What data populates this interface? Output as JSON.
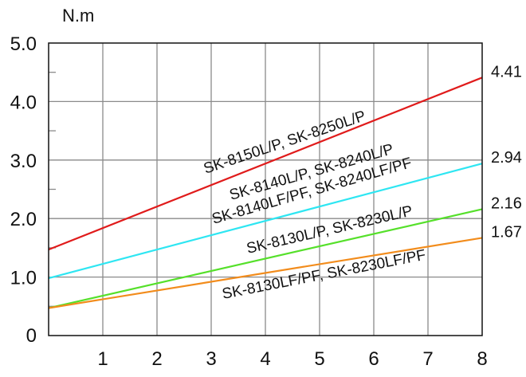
{
  "chart_data": {
    "type": "line",
    "ylabel": "N.m",
    "xlim": [
      0,
      8
    ],
    "ylim": [
      0,
      5
    ],
    "xticks": [
      "1",
      "2",
      "3",
      "4",
      "5",
      "6",
      "7",
      "8"
    ],
    "yticks": [
      "0",
      "1.0",
      "2.0",
      "3.0",
      "4.0",
      "5.0"
    ],
    "grid": true,
    "series": [
      {
        "color": "#e01b1b",
        "x": [
          0,
          8
        ],
        "values": [
          1.47,
          4.41
        ],
        "end_label": "4.41"
      },
      {
        "color": "#2ee6f2",
        "x": [
          0,
          8
        ],
        "values": [
          0.98,
          2.94
        ],
        "end_label": "2.94"
      },
      {
        "color": "#55e02a",
        "x": [
          0,
          8
        ],
        "values": [
          0.47,
          2.16
        ],
        "end_label": "2.16"
      },
      {
        "color": "#f28c1c",
        "x": [
          0,
          8
        ],
        "values": [
          0.47,
          1.67
        ],
        "end_label": "1.67"
      }
    ],
    "annotations": [
      "SK-8150L/P,  SK-8250L/P",
      "SK-8140L/P,  SK-8240L/P",
      "SK-8140LF/PF,  SK-8240LF/PF",
      "SK-8130L/P,  SK-8230L/P",
      "SK-8130LF/PF,  SK-8230LF/PF"
    ]
  }
}
